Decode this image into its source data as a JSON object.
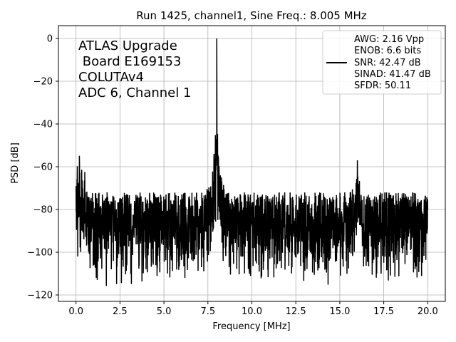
{
  "chart_data": {
    "type": "line",
    "title": "Run 1425, channel1, Sine Freq.: 8.005 MHz",
    "xlabel": "Frequency [MHz]",
    "ylabel": "PSD [dB]",
    "xlim": [
      -1.0,
      21.0
    ],
    "ylim": [
      -123,
      6
    ],
    "xticks": [
      0.0,
      2.5,
      5.0,
      7.5,
      10.0,
      12.5,
      15.0,
      17.5,
      20.0
    ],
    "xtick_labels": [
      "0.0",
      "2.5",
      "5.0",
      "7.5",
      "10.0",
      "12.5",
      "15.0",
      "17.5",
      "20.0"
    ],
    "yticks": [
      0,
      -20,
      -40,
      -60,
      -80,
      -100,
      -120
    ],
    "ytick_labels": [
      "0",
      "−20",
      "−40",
      "−60",
      "−80",
      "−100",
      "−120"
    ],
    "grid": true,
    "legend_position": "top-right",
    "annotation_lines": [
      "ATLAS Upgrade",
      " Board E169153",
      "COLUTAv4",
      "ADC 6, Channel 1"
    ],
    "legend_lines": [
      "AWG: 2.16 Vpp",
      "ENOB: 6.6 bits",
      "SNR: 42.47 dB",
      "SINAD: 41.47 dB",
      "SFDR: 50.11"
    ],
    "series": [
      {
        "color": "#000000",
        "x_range": [
          0.0,
          20.0
        ],
        "noise_floor_db": -88,
        "noise_upper_db": -72,
        "noise_lower_db": -117,
        "low_freq_edge": {
          "x": [
            0.0,
            0.5
          ],
          "peak_db": -59
        },
        "peaks": [
          {
            "x": 8.005,
            "y": 0
          },
          {
            "x": 16.0,
            "y": -57
          },
          {
            "x": 7.9,
            "y": -61
          },
          {
            "x": 0.2,
            "y": -59
          }
        ]
      }
    ],
    "colors": {
      "line": "#000000",
      "grid": "#b0b0b0",
      "background": "#ffffff"
    }
  }
}
